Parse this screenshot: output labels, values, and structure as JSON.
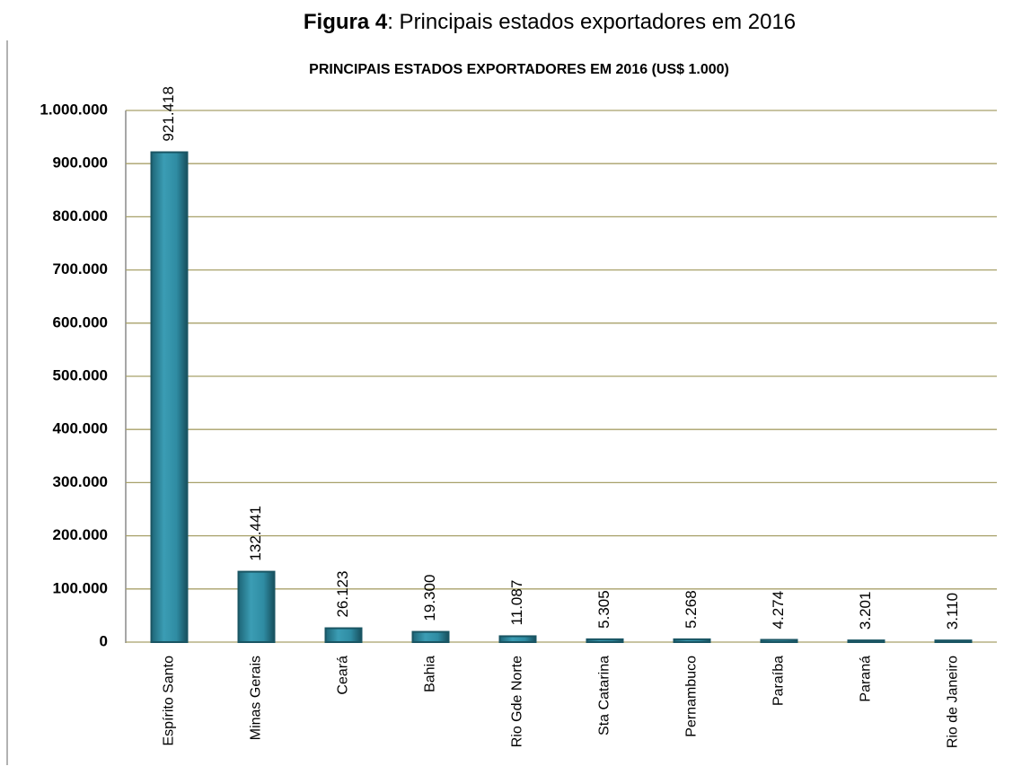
{
  "chart_data": {
    "type": "bar",
    "figure_label": "Figura 4",
    "figure_caption": ": Principais estados exportadores em 2016",
    "title": "PRINCIPAIS ESTADOS EXPORTADORES  EM 2016 (US$ 1.000)",
    "categories": [
      "Espírito Santo",
      "Minas Gerais",
      "Ceará",
      "Bahia",
      "Rio Gde Norte",
      "Sta Catarina",
      "Pernambuco",
      "Paraíba",
      "Paraná",
      "Rio de Janeiro"
    ],
    "values": [
      921418,
      132441,
      26123,
      19300,
      11087,
      5305,
      5268,
      4274,
      3201,
      3110
    ],
    "value_labels": [
      "921.418",
      "132.441",
      "26.123",
      "19.300",
      "11.087",
      "5.305",
      "5.268",
      "4.274",
      "3.201",
      "3.110"
    ],
    "color": "#2f8ca3",
    "ylim": [
      0,
      1000000
    ],
    "yticks": [
      0,
      {
        "value": 100000,
        "label": "100.000"
      },
      {
        "value": 200000,
        "label": "200.000"
      },
      {
        "value": 300000,
        "label": "300.000"
      },
      {
        "value": 400000,
        "label": "400.000"
      },
      {
        "value": 500000,
        "label": "500.000"
      },
      {
        "value": 600000,
        "label": "600.000"
      },
      {
        "value": 700000,
        "label": "700.000"
      },
      {
        "value": 800000,
        "label": "800.000"
      },
      {
        "value": 900000,
        "label": "900.000"
      },
      {
        "value": 1000000,
        "label": "1.000.000"
      }
    ],
    "grid": true
  }
}
